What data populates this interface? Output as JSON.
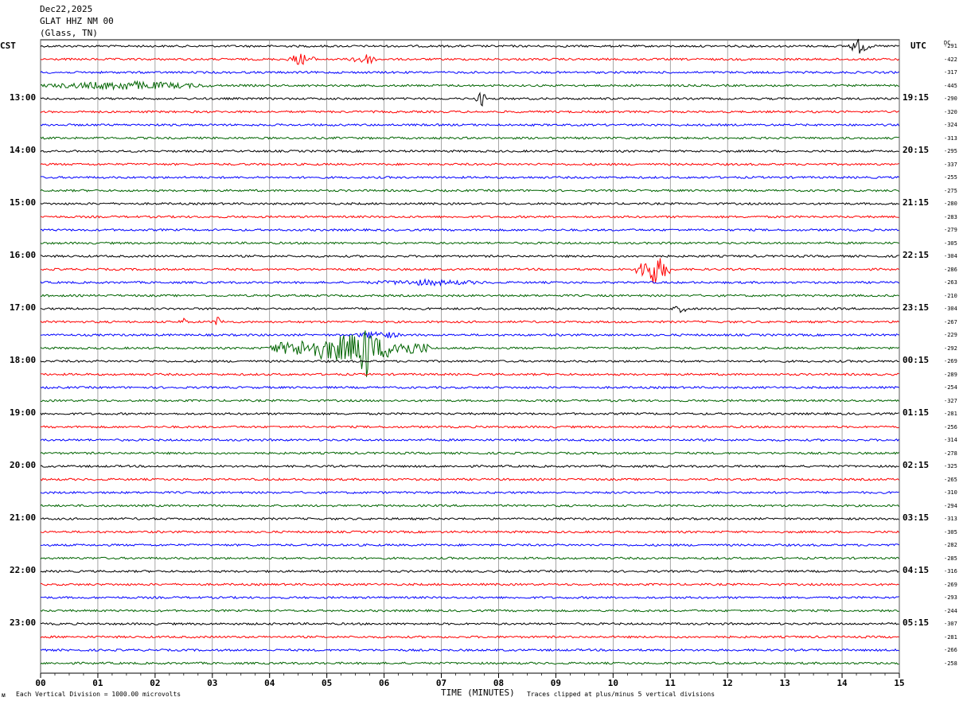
{
  "header": {
    "date": "Dec22,2025",
    "station": "GLAT HHZ NM 00",
    "location": "(Glass, TN)"
  },
  "left_tz": "CST",
  "right_tz": "UTC",
  "dc_header": "DC",
  "footer": {
    "left_mark": "ᴍ",
    "scale_note": "Each Vertical Division = 1000.00 microvolts",
    "xlabel": "TIME (MINUTES)",
    "clip_note": "Traces clipped at plus/minus 5 vertical divisions"
  },
  "colors": {
    "cycle": [
      "#000000",
      "#ff0000",
      "#0000ff",
      "#006400"
    ],
    "grid": "#808080"
  },
  "chart_data": {
    "type": "line",
    "xlim": [
      0,
      15
    ],
    "x_ticks": [
      "00",
      "01",
      "02",
      "03",
      "04",
      "05",
      "06",
      "07",
      "08",
      "09",
      "10",
      "11",
      "12",
      "13",
      "14",
      "15"
    ],
    "traces_per_hour": 4,
    "left_hour_labels": [
      "13:00",
      "14:00",
      "15:00",
      "16:00",
      "17:00",
      "18:00",
      "19:00",
      "20:00",
      "21:00",
      "22:00",
      "23:00"
    ],
    "right_hour_labels": [
      "19:15",
      "20:15",
      "21:15",
      "22:15",
      "23:15",
      "00:15",
      "01:15",
      "02:15",
      "03:15",
      "04:15",
      "05:15"
    ],
    "dc_offsets": [
      "-291",
      "-422",
      "-317",
      "-445",
      "-290",
      "-320",
      "-324",
      "-313",
      "-295",
      "-337",
      "-255",
      "-275",
      "-280",
      "-283",
      "-279",
      "-305",
      "-304",
      "-286",
      "-263",
      "-210",
      "-304",
      "-267",
      "-229",
      "-292",
      "-269",
      "-289",
      "-254",
      "-327",
      "-281",
      "-256",
      "-314",
      "-278",
      "-325",
      "-265",
      "-310",
      "-294",
      "-313",
      "-305",
      "-282",
      "-285",
      "-316",
      "-269",
      "-293",
      "-244",
      "-307",
      "-281",
      "-266",
      "-258"
    ],
    "events": [
      {
        "trace": 3,
        "start": 0.0,
        "end": 3.0,
        "amp": 6
      },
      {
        "trace": 1,
        "start": 4.3,
        "end": 4.8,
        "amp": 8
      },
      {
        "trace": 1,
        "start": 5.4,
        "end": 5.9,
        "amp": 8
      },
      {
        "trace": 4,
        "start": 7.6,
        "end": 7.8,
        "amp": 10
      },
      {
        "trace": 0,
        "start": 14.1,
        "end": 14.5,
        "amp": 10
      },
      {
        "trace": 17,
        "start": 10.4,
        "end": 11.0,
        "amp": 20
      },
      {
        "trace": 18,
        "start": 5.5,
        "end": 8.0,
        "amp": 4
      },
      {
        "trace": 21,
        "start": 3.0,
        "end": 3.2,
        "amp": 7
      },
      {
        "trace": 21,
        "start": 2.4,
        "end": 2.6,
        "amp": 5
      },
      {
        "trace": 20,
        "start": 11.0,
        "end": 11.4,
        "amp": 5
      },
      {
        "trace": 22,
        "start": 5.5,
        "end": 6.3,
        "amp": 6
      },
      {
        "trace": 23,
        "start": 4.0,
        "end": 6.8,
        "amp": 18
      },
      {
        "trace": 23,
        "start": 5.5,
        "end": 5.8,
        "amp": 50
      }
    ]
  }
}
